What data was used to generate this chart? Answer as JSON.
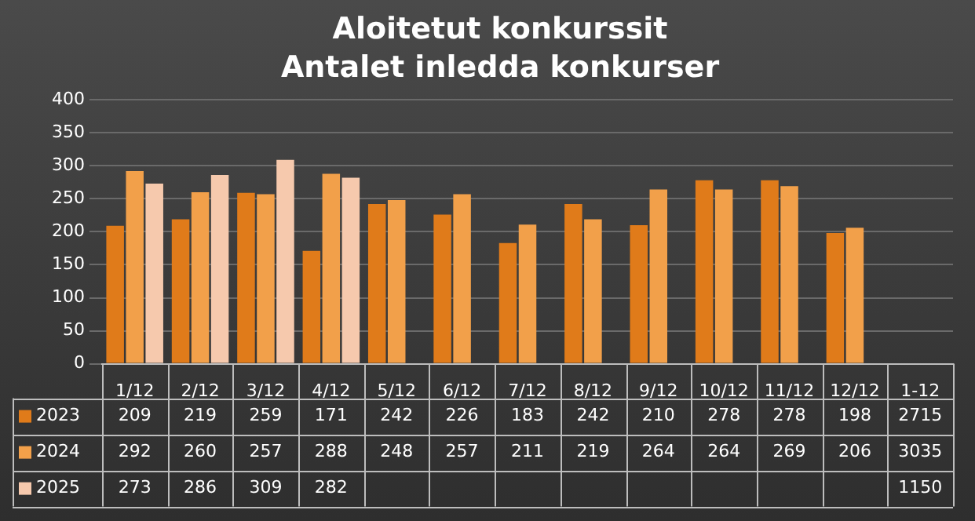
{
  "chart_data": {
    "type": "bar",
    "title": "Aloitetut konkurssit",
    "subtitle": "Antalet inledda konkurser",
    "legend": "bottom left",
    "categories": [
      "1/12",
      "2/12",
      "3/12",
      "4/12",
      "5/12",
      "6/12",
      "7/12",
      "8/12",
      "9/12",
      "10/12",
      "11/12",
      "12/12",
      "1-12"
    ],
    "series": [
      {
        "name": "2023",
        "color": "#e07b1a",
        "values": [
          209,
          219,
          259,
          171,
          242,
          226,
          183,
          242,
          210,
          278,
          278,
          198,
          null
        ],
        "value_labels": [
          "209",
          "219",
          "259",
          "171",
          "242",
          "226",
          "183",
          "242",
          "210",
          "278",
          "278",
          "198",
          "2715"
        ]
      },
      {
        "name": "2024",
        "color": "#f2a04a",
        "values": [
          292,
          260,
          257,
          288,
          248,
          257,
          211,
          219,
          264,
          264,
          269,
          206,
          null
        ],
        "value_labels": [
          "292",
          "260",
          "257",
          "288",
          "248",
          "257",
          "211",
          "219",
          "264",
          "264",
          "269",
          "206",
          "3035"
        ]
      },
      {
        "name": "2025",
        "color": "#f6c9ad",
        "values": [
          273,
          286,
          309,
          282,
          null,
          null,
          null,
          null,
          null,
          null,
          null,
          null,
          null
        ],
        "value_labels": [
          "273",
          "286",
          "309",
          "282",
          null,
          null,
          null,
          null,
          null,
          null,
          null,
          null,
          "1150"
        ]
      }
    ],
    "ylim": [
      0,
      400
    ],
    "yticks": [
      0,
      50,
      100,
      150,
      200,
      250,
      300,
      350,
      400
    ],
    "grid": "y"
  }
}
